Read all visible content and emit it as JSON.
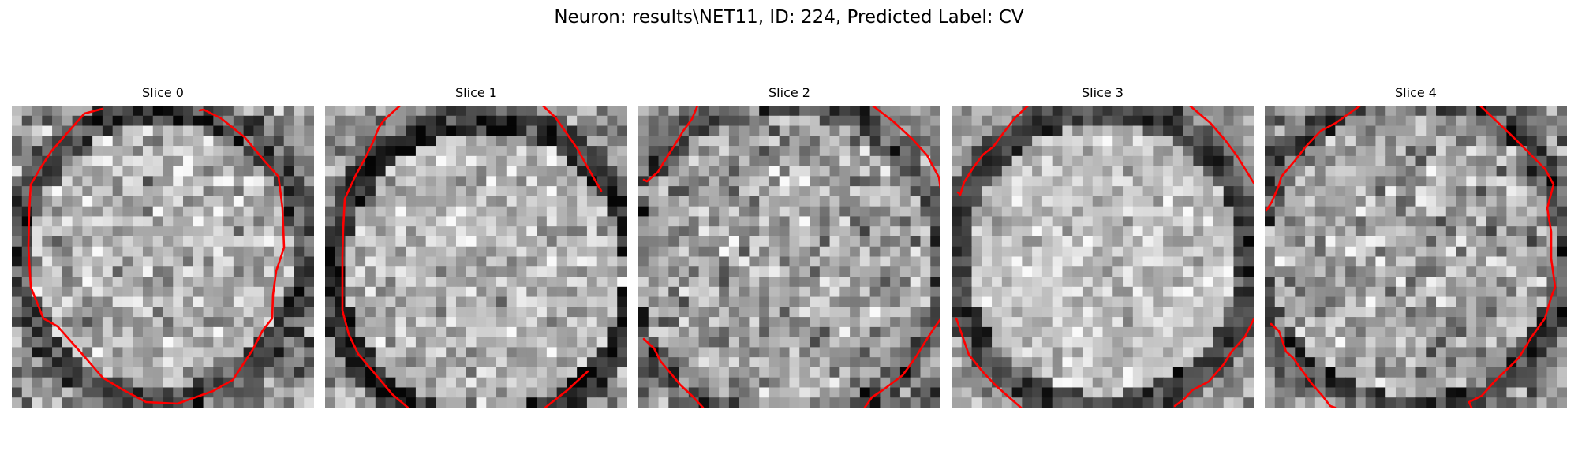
{
  "figure": {
    "title": "Neuron: results\\NET11, ID: 224, Predicted Label: CV"
  },
  "panels": [
    {
      "title": "Slice 0",
      "overlay_color": "#ff0000"
    },
    {
      "title": "Slice 1",
      "overlay_color": "#ff0000"
    },
    {
      "title": "Slice 2",
      "overlay_color": "#ff0000"
    },
    {
      "title": "Slice 3",
      "overlay_color": "#ff0000"
    },
    {
      "title": "Slice 4",
      "overlay_color": "#ff0000"
    }
  ]
}
